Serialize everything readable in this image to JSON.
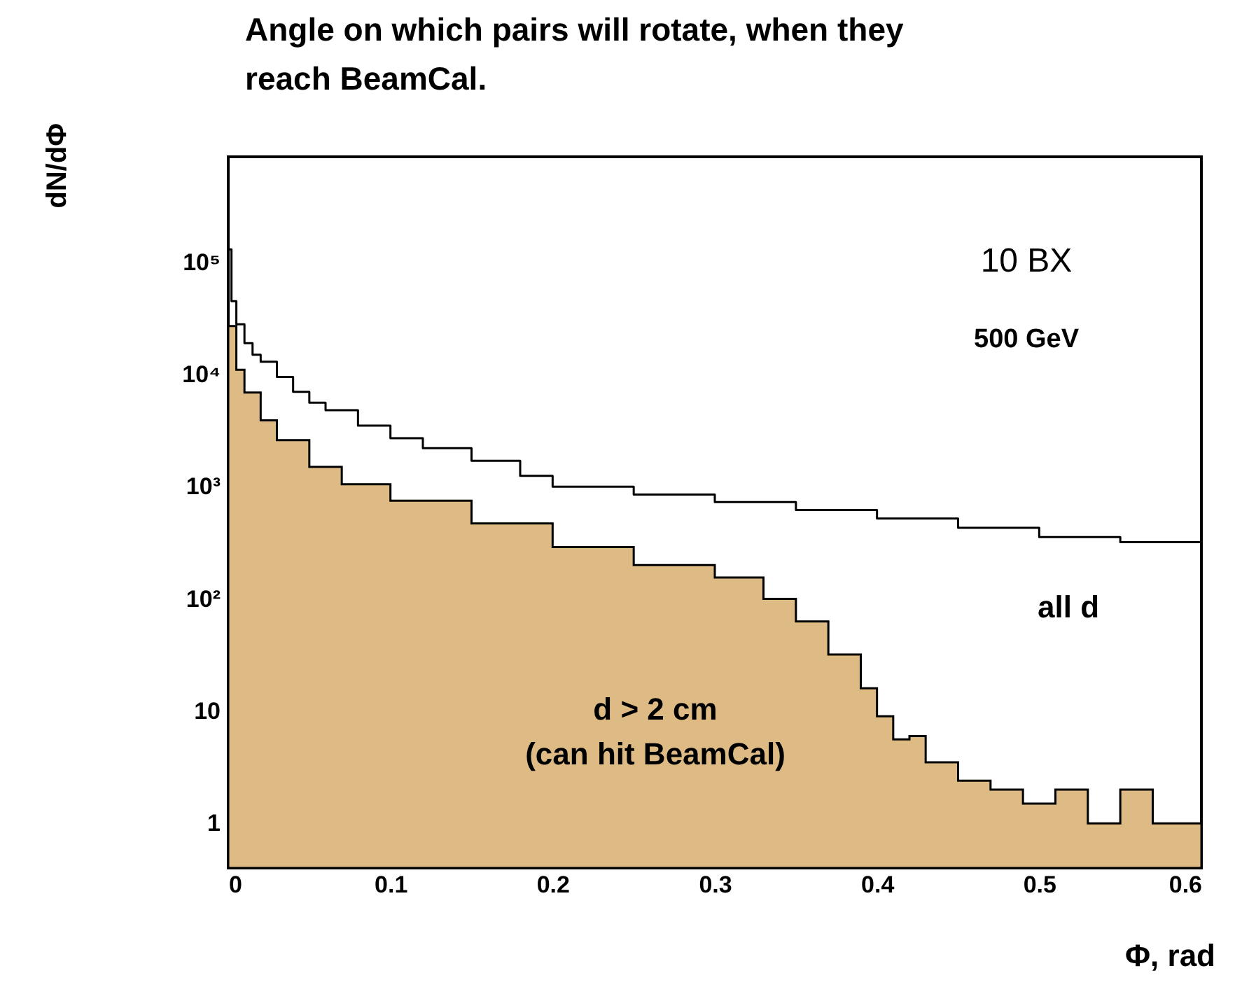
{
  "chart_data": {
    "type": "step",
    "title": "Angle on which pairs will rotate, when they\nreach BeamCal.",
    "xlabel": "Φ, rad",
    "ylabel": "dN/dΦ",
    "xlim": [
      0,
      0.6
    ],
    "xticks": [
      0,
      0.1,
      0.2,
      0.3,
      0.4,
      0.5,
      0.6
    ],
    "ylim": [
      0.4,
      870000
    ],
    "log": true,
    "yticks": [
      1,
      10,
      {
        "value": 100,
        "label": "10²"
      },
      {
        "value": 1000,
        "label": "10³"
      },
      {
        "value": 10000,
        "label": "10⁴"
      },
      {
        "value": 100000,
        "label": "10⁵"
      }
    ],
    "grid": false,
    "series": [
      {
        "type": "area",
        "color": "#deba84",
        "x": [
          0,
          0.005,
          0.01,
          0.02,
          0.03,
          0.05,
          0.07,
          0.1,
          0.15,
          0.2,
          0.25,
          0.3,
          0.33,
          0.35,
          0.37,
          0.39,
          0.4,
          0.41,
          0.42,
          0.43,
          0.45,
          0.47,
          0.49,
          0.51,
          0.53,
          0.55,
          0.57,
          0.6
        ],
        "values": [
          27000,
          11000,
          6900,
          3900,
          2600,
          1500,
          1050,
          750,
          470,
          290,
          200,
          155,
          100,
          63,
          32,
          16,
          9,
          5.6,
          6,
          3.5,
          2.4,
          2,
          1.5,
          2,
          1,
          2,
          1,
          1
        ]
      },
      {
        "color": "#000000",
        "x": [
          0,
          0.002,
          0.005,
          0.01,
          0.015,
          0.02,
          0.03,
          0.04,
          0.05,
          0.06,
          0.08,
          0.1,
          0.12,
          0.15,
          0.18,
          0.2,
          0.25,
          0.3,
          0.35,
          0.4,
          0.45,
          0.5,
          0.55,
          0.6
        ],
        "values": [
          130000,
          45000,
          28000,
          19000,
          15000,
          13000,
          9500,
          7000,
          5600,
          4800,
          3500,
          2700,
          2200,
          1700,
          1250,
          1000,
          850,
          730,
          620,
          520,
          430,
          355,
          320,
          290
        ]
      }
    ],
    "annotations": [
      "10 BX",
      "500 GeV",
      "all d",
      "d > 2 cm\n(can hit BeamCal)"
    ]
  }
}
